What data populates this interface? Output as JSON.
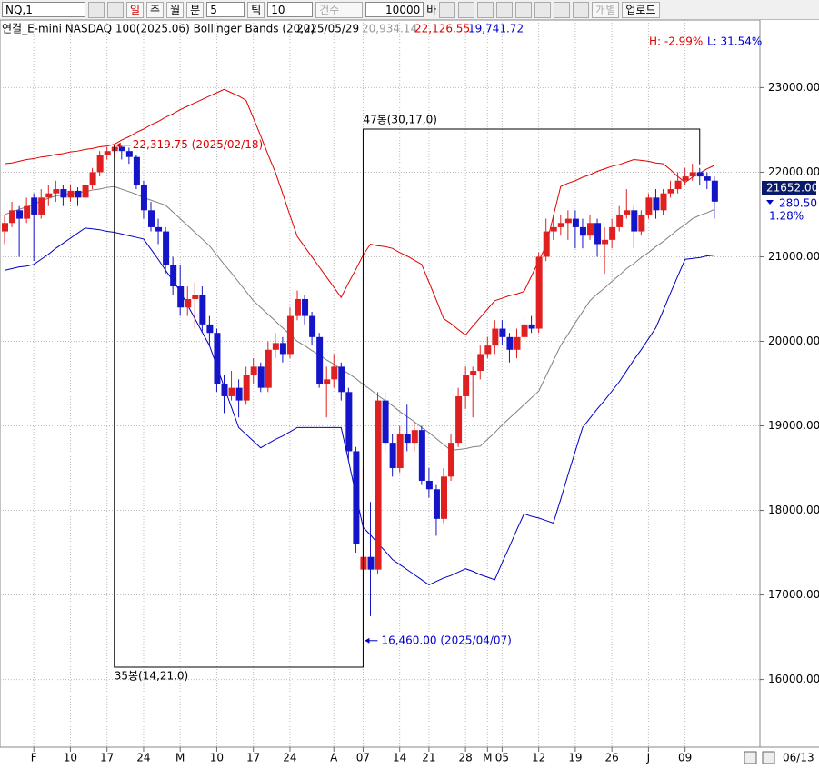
{
  "toolbar": {
    "symbol": "NQ,1",
    "periods": [
      "일",
      "주",
      "월",
      "분"
    ],
    "minute_value": "5",
    "tick_label": "틱",
    "tick_value": "10",
    "count_label": "건수",
    "count_value": "10000",
    "bar_label": "바",
    "individual": "개별",
    "upload": "업로드"
  },
  "chart_data": {
    "type": "candlestick",
    "title": "연결_E-mini NASDAQ 100(2025.06) Bollinger Bands  (20,2)",
    "readout": {
      "date": "2025/05/29",
      "middle": "20,934.14",
      "upper": "22,126.55",
      "lower": "19,741.72"
    },
    "h_label": "H: -2.99%",
    "l_label": "L: 31.54%",
    "last_price": "21652.00",
    "change": "280.50",
    "change_pct": "1.28%",
    "end_date": "06/13",
    "categories": [
      null,
      null,
      null,
      null,
      "F",
      null,
      null,
      null,
      null,
      "10",
      null,
      null,
      null,
      null,
      "17",
      null,
      null,
      null,
      null,
      "24",
      null,
      null,
      null,
      null,
      "M",
      null,
      null,
      null,
      null,
      "10",
      null,
      null,
      null,
      null,
      "17",
      null,
      null,
      null,
      null,
      "24",
      null,
      null,
      null,
      null,
      null,
      "A",
      null,
      null,
      null,
      "07",
      null,
      null,
      null,
      null,
      "14",
      null,
      null,
      null,
      "21",
      null,
      null,
      null,
      null,
      "28",
      null,
      null,
      "M",
      null,
      "05",
      null,
      null,
      null,
      null,
      "12",
      null,
      null,
      null,
      null,
      "19",
      null,
      null,
      null,
      null,
      "26",
      null,
      null,
      null,
      null,
      "J",
      null,
      null,
      null,
      null,
      "09",
      null,
      null,
      null,
      null
    ],
    "open": [
      21300,
      21400,
      21550,
      21450,
      21700,
      21500,
      21700,
      21750,
      21800,
      21700,
      21780,
      21700,
      21850,
      22000,
      22200,
      22250,
      22300,
      22250,
      22180,
      21850,
      21550,
      21350,
      21300,
      20900,
      20650,
      20400,
      20500,
      20550,
      20200,
      20100,
      19500,
      19350,
      19450,
      19300,
      19600,
      19700,
      19450,
      19900,
      19980,
      19850,
      20300,
      20500,
      20300,
      20050,
      19500,
      19550,
      19700,
      19400,
      18700,
      17300,
      17450,
      17300,
      19300,
      18800,
      18500,
      18900,
      18800,
      18950,
      18350,
      18250,
      17900,
      18400,
      18800,
      19350,
      19600,
      19650,
      19850,
      19950,
      20150,
      20050,
      19900,
      20050,
      20200,
      20150,
      21000,
      21300,
      21350,
      21400,
      21450,
      21350,
      21250,
      21400,
      21150,
      21200,
      21350,
      21500,
      21550,
      21300,
      21500,
      21700,
      21550,
      21750,
      21800,
      21900,
      21950,
      22000,
      21950,
      21900
    ],
    "high": [
      21500,
      21650,
      21600,
      21700,
      21750,
      21800,
      21850,
      21900,
      21850,
      21850,
      21820,
      21900,
      22050,
      22250,
      22300,
      22319.75,
      22310,
      22290,
      22200,
      21900,
      21650,
      21450,
      21350,
      21000,
      20900,
      20650,
      20700,
      20650,
      20300,
      20150,
      19600,
      19650,
      19550,
      19700,
      19800,
      19750,
      20000,
      20100,
      20050,
      20400,
      20600,
      20550,
      20350,
      20100,
      19700,
      19850,
      19750,
      19450,
      18750,
      18500,
      18100,
      19400,
      19400,
      18900,
      19000,
      19250,
      19050,
      19000,
      18500,
      18300,
      18500,
      18900,
      19450,
      19700,
      19700,
      19950,
      20050,
      20250,
      20250,
      20100,
      20150,
      20300,
      20300,
      21050,
      21450,
      21500,
      21500,
      21550,
      21550,
      21450,
      21500,
      21450,
      21350,
      21450,
      21600,
      21800,
      21600,
      21550,
      21750,
      21800,
      21800,
      21900,
      22000,
      22050,
      22100,
      22050,
      22000,
      21950
    ],
    "low": [
      21150,
      21350,
      21000,
      21400,
      20950,
      21450,
      21600,
      21650,
      21600,
      21650,
      21600,
      21650,
      21800,
      21950,
      22150,
      22180,
      22150,
      22100,
      21800,
      21450,
      21300,
      21150,
      20800,
      20550,
      20300,
      20300,
      20150,
      20100,
      19950,
      19400,
      19150,
      19300,
      19100,
      19250,
      19500,
      19400,
      19400,
      19800,
      19750,
      19800,
      20250,
      20200,
      19950,
      19450,
      19100,
      19450,
      19300,
      18600,
      17500,
      16460,
      16750,
      17250,
      18700,
      18400,
      18450,
      18700,
      18700,
      18300,
      18150,
      17700,
      17850,
      18350,
      18750,
      19200,
      19100,
      19550,
      19800,
      19850,
      19950,
      19750,
      19800,
      20000,
      20100,
      20100,
      20950,
      21200,
      21250,
      21200,
      21100,
      21100,
      21200,
      21000,
      20800,
      21100,
      21300,
      21450,
      21100,
      21250,
      21450,
      21450,
      21500,
      21700,
      21750,
      21850,
      21900,
      21850,
      21800,
      21450
    ],
    "close": [
      21400,
      21550,
      21450,
      21600,
      21500,
      21700,
      21750,
      21800,
      21700,
      21780,
      21700,
      21850,
      22000,
      22200,
      22250,
      22300,
      22250,
      22180,
      21850,
      21550,
      21350,
      21300,
      20900,
      20650,
      20400,
      20500,
      20550,
      20200,
      20100,
      19500,
      19350,
      19450,
      19300,
      19600,
      19700,
      19450,
      19900,
      19980,
      19850,
      20300,
      20500,
      20300,
      20050,
      19500,
      19550,
      19700,
      19400,
      18700,
      17600,
      17450,
      17300,
      19300,
      18800,
      18500,
      18900,
      18800,
      18950,
      18350,
      18250,
      17900,
      18400,
      18800,
      19350,
      19600,
      19650,
      19850,
      19950,
      20150,
      20050,
      19900,
      20050,
      20200,
      20150,
      21000,
      21300,
      21350,
      21400,
      21450,
      21350,
      21250,
      21400,
      21150,
      21200,
      21350,
      21500,
      21550,
      21300,
      21500,
      21700,
      21550,
      21750,
      21800,
      21900,
      21950,
      22000,
      21950,
      21900,
      21652
    ],
    "up_color": "#e02020",
    "down_color": "#1414c8",
    "bands": [
      {
        "color": "#e00000",
        "values": [
          22100,
          22110,
          22130,
          22150,
          22160,
          22180,
          22190,
          22210,
          22220,
          22240,
          22250,
          22270,
          22280,
          22300,
          22310,
          22330,
          22380,
          22420,
          22470,
          22510,
          22560,
          22600,
          22650,
          22690,
          22740,
          22780,
          22820,
          22860,
          22900,
          22940,
          22980,
          22940,
          22900,
          22850,
          22640,
          22430,
          22210,
          22000,
          21750,
          21490,
          21240,
          21120,
          21000,
          20880,
          20760,
          20640,
          20520,
          20690,
          20850,
          21020,
          21150,
          21130,
          21120,
          21100,
          21050,
          21010,
          20960,
          20910,
          20700,
          20490,
          20270,
          20210,
          20140,
          20075,
          20180,
          20280,
          20380,
          20480,
          20510,
          20540,
          20560,
          20590,
          20770,
          20950,
          21130,
          21480,
          21830,
          21870,
          21900,
          21940,
          21970,
          22010,
          22040,
          22070,
          22090,
          22120,
          22150,
          22140,
          22130,
          22110,
          22100,
          22030,
          21950,
          21880,
          21940,
          21990,
          22040,
          22080
        ]
      },
      {
        "color": "#808080",
        "values": [
          21500,
          21530,
          21560,
          21590,
          21620,
          21660,
          21690,
          21720,
          21730,
          21750,
          21760,
          21770,
          21790,
          21800,
          21820,
          21830,
          21800,
          21770,
          21740,
          21700,
          21670,
          21640,
          21610,
          21530,
          21450,
          21370,
          21290,
          21210,
          21130,
          21020,
          20910,
          20810,
          20700,
          20590,
          20480,
          20400,
          20320,
          20240,
          20160,
          20080,
          20000,
          19950,
          19890,
          19840,
          19780,
          19730,
          19670,
          19620,
          19560,
          19490,
          19430,
          19360,
          19300,
          19240,
          19170,
          19110,
          19050,
          18980,
          18920,
          18850,
          18780,
          18710,
          18720,
          18730,
          18750,
          18760,
          18840,
          18920,
          19010,
          19090,
          19170,
          19250,
          19330,
          19410,
          19590,
          19770,
          19950,
          20080,
          20220,
          20350,
          20480,
          20560,
          20630,
          20710,
          20780,
          20860,
          20920,
          20990,
          21050,
          21120,
          21180,
          21250,
          21320,
          21380,
          21450,
          21490,
          21520,
          21560
        ]
      },
      {
        "color": "#0000c0",
        "values": [
          20840,
          20860,
          20880,
          20890,
          20910,
          20970,
          21030,
          21100,
          21160,
          21220,
          21280,
          21340,
          21330,
          21320,
          21300,
          21290,
          21270,
          21250,
          21230,
          21210,
          21090,
          20970,
          20840,
          20720,
          20590,
          20430,
          20270,
          20110,
          19950,
          19710,
          19460,
          19220,
          18980,
          18900,
          18820,
          18740,
          18790,
          18840,
          18880,
          18930,
          18980,
          18980,
          18980,
          18980,
          18980,
          18980,
          18980,
          18590,
          18190,
          17800,
          17710,
          17610,
          17520,
          17420,
          17360,
          17300,
          17240,
          17180,
          17120,
          17160,
          17200,
          17230,
          17270,
          17310,
          17280,
          17240,
          17210,
          17180,
          17380,
          17570,
          17770,
          17960,
          17930,
          17910,
          17880,
          17850,
          18130,
          18420,
          18700,
          18980,
          19090,
          19200,
          19300,
          19410,
          19520,
          19650,
          19780,
          19900,
          20030,
          20160,
          20360,
          20570,
          20770,
          20970,
          20980,
          20990,
          21010,
          21020
        ]
      }
    ],
    "high_note": {
      "label": "22,319.75 (2025/02/18)",
      "value": 22319.75
    },
    "low_note": {
      "label": "16,460.00 (2025/04/07)",
      "value": 16460
    },
    "high_span": {
      "label": "35봉(14,21,0)",
      "count": 35
    },
    "low_span": {
      "label": "47봉(30,17,0)",
      "count": 47
    },
    "ylim": [
      15200,
      23800
    ],
    "yticks": [
      {
        "value": 16000,
        "label": "16000.00"
      },
      {
        "value": 17000,
        "label": "17000.00"
      },
      {
        "value": 18000,
        "label": "18000.00"
      },
      {
        "value": 19000,
        "label": "19000.00"
      },
      {
        "value": 20000,
        "label": "20000.00"
      },
      {
        "value": 21000,
        "label": "21000.00"
      },
      {
        "value": 22000,
        "label": "22000.00"
      },
      {
        "value": 23000,
        "label": "23000.00"
      }
    ],
    "grid": true
  }
}
